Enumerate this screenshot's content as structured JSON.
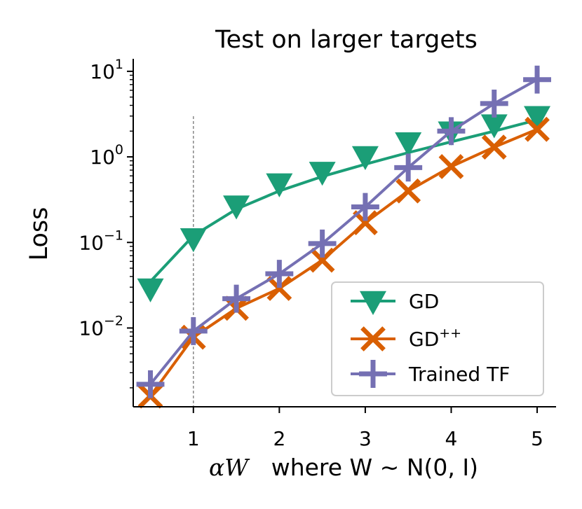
{
  "chart_data": {
    "type": "line",
    "title": "Test on larger targets",
    "xlabel_math": "αW",
    "xlabel_text": "where W ∼ N(0, I)",
    "ylabel": "Loss",
    "yscale": "log",
    "xlim": [
      0.3,
      5.22
    ],
    "ylim": [
      0.0012,
      14
    ],
    "xticks": [
      1,
      2,
      3,
      4,
      5
    ],
    "xtick_labels": [
      "1",
      "2",
      "3",
      "4",
      "5"
    ],
    "yticks": [
      {
        "base": "10",
        "exp": "1",
        "value": 10
      },
      {
        "base": "10",
        "exp": "0",
        "value": 1
      },
      {
        "base": "10",
        "exp": "−1",
        "value": 0.1
      },
      {
        "base": "10",
        "exp": "−2",
        "value": 0.01
      }
    ],
    "reference_line_x": 1,
    "legend_position": "lower-right",
    "x": [
      0.5,
      1.0,
      1.5,
      2.0,
      2.5,
      3.0,
      3.5,
      4.0,
      4.5,
      5.0
    ],
    "series": [
      {
        "name": "GD",
        "name_sup": "",
        "marker": "triangle-down",
        "color": "#1b9e77",
        "values": [
          0.029,
          0.112,
          0.27,
          0.49,
          0.67,
          1.02,
          1.48,
          1.98,
          2.4,
          3.0
        ],
        "fit": [
          0.035,
          0.12,
          0.245,
          0.4,
          0.59,
          0.82,
          1.12,
          1.5,
          2.0,
          2.7
        ]
      },
      {
        "name": "GD",
        "name_sup": "++",
        "marker": "x",
        "color": "#d95f02",
        "values": [
          0.0016,
          0.0078,
          0.017,
          0.029,
          0.062,
          0.17,
          0.4,
          0.77,
          1.3,
          2.1
        ],
        "fit": [
          0.0016,
          0.0078,
          0.017,
          0.029,
          0.062,
          0.17,
          0.4,
          0.77,
          1.3,
          2.1
        ]
      },
      {
        "name": "Trained TF",
        "name_sup": "",
        "marker": "plus",
        "color": "#7570b3",
        "values": [
          0.0022,
          0.0092,
          0.022,
          0.043,
          0.097,
          0.26,
          0.75,
          2.0,
          4.2,
          8.0
        ],
        "fit": [
          0.0022,
          0.0092,
          0.022,
          0.043,
          0.097,
          0.26,
          0.75,
          2.0,
          4.2,
          8.0
        ]
      }
    ]
  }
}
